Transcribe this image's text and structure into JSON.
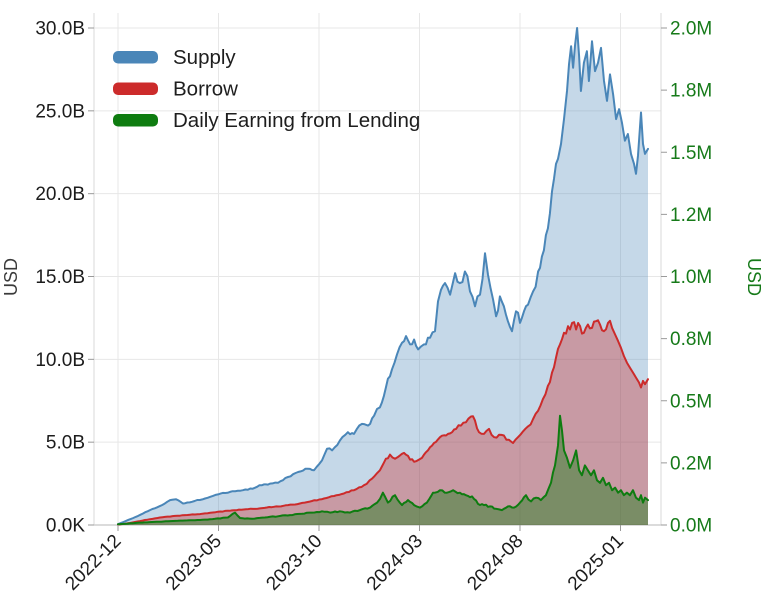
{
  "chart_data": {
    "type": "area",
    "title": "",
    "x_axis": {
      "tick_labels": [
        "2022-12",
        "2023-05",
        "2023-10",
        "2024-03",
        "2024-08",
        "2025-01"
      ],
      "ticks_t_months": [
        0,
        5,
        10,
        15,
        20,
        25
      ],
      "t_unit": "months since 2022-12"
    },
    "y_axis_left": {
      "title": "USD",
      "color": "#1c1c1c",
      "range_billions": [
        0,
        30
      ],
      "ticks": [
        {
          "label": "0.0K",
          "value": 0
        },
        {
          "label": "5.0B",
          "value": 5
        },
        {
          "label": "10.0B",
          "value": 10
        },
        {
          "label": "15.0B",
          "value": 15
        },
        {
          "label": "20.0B",
          "value": 20
        },
        {
          "label": "25.0B",
          "value": 25
        },
        {
          "label": "30.0B",
          "value": 30
        }
      ]
    },
    "y_axis_right": {
      "title": "USD",
      "color": "#167a19",
      "range_millions": [
        0,
        2
      ],
      "ticks": [
        {
          "label": "0.0M",
          "value": 0
        },
        {
          "label": "0.2M",
          "value": 0.25
        },
        {
          "label": "0.5M",
          "value": 0.5
        },
        {
          "label": "0.8M",
          "value": 0.75
        },
        {
          "label": "1.0M",
          "value": 1.0
        },
        {
          "label": "1.2M",
          "value": 1.25
        },
        {
          "label": "1.5M",
          "value": 1.5
        },
        {
          "label": "1.8M",
          "value": 1.75
        },
        {
          "label": "2.0M",
          "value": 2.0
        }
      ]
    },
    "legend": [
      {
        "label": "Supply",
        "color": "#4a86b8"
      },
      {
        "label": "Borrow",
        "color": "#cc2b2b"
      },
      {
        "label": "Daily Earning from Lending",
        "color": "#0e7c10"
      }
    ],
    "series": [
      {
        "name": "Supply",
        "axis": "left",
        "unit": "B USD",
        "color": "#4a86b8",
        "points": [
          [
            0,
            0.05
          ],
          [
            0.4,
            0.25
          ],
          [
            1.0,
            0.55
          ],
          [
            1.59,
            0.9
          ],
          [
            2.19,
            1.2
          ],
          [
            2.59,
            1.5
          ],
          [
            2.89,
            1.55
          ],
          [
            3.23,
            1.3
          ],
          [
            3.68,
            1.4
          ],
          [
            4.33,
            1.6
          ],
          [
            4.98,
            1.85
          ],
          [
            5.57,
            2.0
          ],
          [
            6.22,
            2.1
          ],
          [
            6.82,
            2.25
          ],
          [
            7.26,
            2.45
          ],
          [
            7.56,
            2.5
          ],
          [
            7.96,
            2.55
          ],
          [
            8.46,
            2.9
          ],
          [
            8.96,
            3.2
          ],
          [
            9.45,
            3.4
          ],
          [
            9.75,
            3.3
          ],
          [
            10.15,
            3.9
          ],
          [
            10.4,
            4.6
          ],
          [
            10.65,
            4.5
          ],
          [
            11.04,
            5.1
          ],
          [
            11.44,
            5.6
          ],
          [
            11.74,
            5.5
          ],
          [
            12.14,
            6.1
          ],
          [
            12.44,
            6.0
          ],
          [
            12.74,
            6.6
          ],
          [
            13.03,
            7.1
          ],
          [
            13.33,
            8.3
          ],
          [
            13.63,
            9.4
          ],
          [
            13.88,
            10.3
          ],
          [
            14.13,
            11.0
          ],
          [
            14.33,
            11.4
          ],
          [
            14.53,
            10.9
          ],
          [
            14.73,
            11.2
          ],
          [
            14.93,
            10.6
          ],
          [
            15.22,
            10.9
          ],
          [
            15.52,
            11.3
          ],
          [
            15.77,
            11.7
          ],
          [
            15.92,
            13.5
          ],
          [
            16.07,
            14.2
          ],
          [
            16.27,
            14.6
          ],
          [
            16.52,
            13.9
          ],
          [
            16.77,
            15.2
          ],
          [
            17.01,
            14.6
          ],
          [
            17.26,
            15.3
          ],
          [
            17.51,
            14.1
          ],
          [
            17.76,
            13.2
          ],
          [
            18.01,
            13.9
          ],
          [
            18.26,
            16.4
          ],
          [
            18.41,
            15.1
          ],
          [
            18.66,
            13.6
          ],
          [
            18.81,
            12.6
          ],
          [
            19.0,
            13.8
          ],
          [
            19.2,
            13.2
          ],
          [
            19.4,
            12.3
          ],
          [
            19.6,
            11.7
          ],
          [
            19.8,
            12.9
          ],
          [
            20.0,
            12.2
          ],
          [
            20.2,
            12.9
          ],
          [
            20.4,
            13.3
          ],
          [
            20.65,
            14.1
          ],
          [
            20.9,
            15.3
          ],
          [
            21.09,
            16.2
          ],
          [
            21.29,
            17.5
          ],
          [
            21.49,
            18.8
          ],
          [
            21.69,
            20.9
          ],
          [
            21.89,
            22.1
          ],
          [
            22.04,
            23.0
          ],
          [
            22.19,
            24.5
          ],
          [
            22.34,
            26.2
          ],
          [
            22.44,
            27.8
          ],
          [
            22.54,
            28.9
          ],
          [
            22.64,
            27.6
          ],
          [
            22.74,
            29.0
          ],
          [
            22.84,
            30.0
          ],
          [
            22.94,
            28.3
          ],
          [
            23.03,
            26.2
          ],
          [
            23.18,
            27.9
          ],
          [
            23.33,
            28.6
          ],
          [
            23.43,
            26.8
          ],
          [
            23.58,
            29.2
          ],
          [
            23.73,
            27.4
          ],
          [
            23.88,
            27.9
          ],
          [
            24.03,
            28.8
          ],
          [
            24.18,
            26.8
          ],
          [
            24.33,
            25.6
          ],
          [
            24.48,
            27.2
          ],
          [
            24.63,
            26.0
          ],
          [
            24.78,
            24.5
          ],
          [
            24.93,
            25.1
          ],
          [
            25.07,
            24.3
          ],
          [
            25.22,
            23.2
          ],
          [
            25.37,
            23.6
          ],
          [
            25.52,
            22.4
          ],
          [
            25.67,
            21.8
          ],
          [
            25.77,
            21.2
          ],
          [
            25.87,
            22.3
          ],
          [
            26.02,
            24.9
          ],
          [
            26.12,
            23.0
          ],
          [
            26.22,
            22.4
          ],
          [
            26.37,
            22.7
          ]
        ]
      },
      {
        "name": "Borrow",
        "axis": "left",
        "unit": "B USD",
        "color": "#cc2b2b",
        "points": [
          [
            0,
            0.02
          ],
          [
            0.6,
            0.12
          ],
          [
            1.34,
            0.3
          ],
          [
            2.09,
            0.45
          ],
          [
            2.84,
            0.55
          ],
          [
            3.58,
            0.62
          ],
          [
            4.33,
            0.7
          ],
          [
            4.98,
            0.8
          ],
          [
            5.67,
            0.88
          ],
          [
            6.37,
            0.95
          ],
          [
            7.06,
            1.0
          ],
          [
            7.76,
            1.1
          ],
          [
            8.46,
            1.2
          ],
          [
            9.05,
            1.3
          ],
          [
            9.65,
            1.45
          ],
          [
            10.25,
            1.6
          ],
          [
            10.75,
            1.75
          ],
          [
            11.24,
            1.9
          ],
          [
            11.74,
            2.1
          ],
          [
            12.24,
            2.4
          ],
          [
            12.64,
            2.8
          ],
          [
            13.03,
            3.3
          ],
          [
            13.33,
            4.0
          ],
          [
            13.53,
            4.25
          ],
          [
            13.78,
            4.0
          ],
          [
            14.03,
            4.2
          ],
          [
            14.23,
            4.35
          ],
          [
            14.53,
            3.95
          ],
          [
            14.83,
            3.85
          ],
          [
            15.12,
            4.05
          ],
          [
            15.42,
            4.5
          ],
          [
            15.72,
            4.95
          ],
          [
            16.02,
            5.3
          ],
          [
            16.32,
            5.4
          ],
          [
            16.62,
            5.6
          ],
          [
            16.82,
            5.8
          ],
          [
            17.06,
            6.0
          ],
          [
            17.31,
            6.2
          ],
          [
            17.56,
            6.55
          ],
          [
            17.76,
            6.3
          ],
          [
            17.96,
            5.6
          ],
          [
            18.21,
            5.5
          ],
          [
            18.46,
            5.8
          ],
          [
            18.71,
            5.3
          ],
          [
            18.96,
            5.45
          ],
          [
            19.2,
            5.4
          ],
          [
            19.45,
            5.15
          ],
          [
            19.65,
            4.95
          ],
          [
            19.9,
            5.3
          ],
          [
            20.15,
            5.65
          ],
          [
            20.4,
            5.95
          ],
          [
            20.65,
            6.4
          ],
          [
            20.9,
            6.9
          ],
          [
            21.14,
            7.6
          ],
          [
            21.39,
            8.4
          ],
          [
            21.59,
            9.2
          ],
          [
            21.79,
            10.1
          ],
          [
            21.99,
            10.9
          ],
          [
            22.19,
            11.6
          ],
          [
            22.39,
            12.0
          ],
          [
            22.59,
            12.2
          ],
          [
            22.79,
            11.8
          ],
          [
            22.99,
            12.0
          ],
          [
            23.18,
            11.6
          ],
          [
            23.38,
            12.1
          ],
          [
            23.58,
            11.9
          ],
          [
            23.78,
            12.3
          ],
          [
            23.98,
            12.1
          ],
          [
            24.18,
            11.7
          ],
          [
            24.38,
            12.2
          ],
          [
            24.58,
            11.9
          ],
          [
            24.73,
            11.5
          ],
          [
            24.88,
            11.1
          ],
          [
            25.02,
            10.7
          ],
          [
            25.17,
            10.2
          ],
          [
            25.32,
            9.8
          ],
          [
            25.47,
            9.5
          ],
          [
            25.62,
            9.2
          ],
          [
            25.77,
            8.9
          ],
          [
            25.92,
            8.6
          ],
          [
            26.02,
            8.3
          ],
          [
            26.12,
            8.7
          ],
          [
            26.22,
            8.5
          ],
          [
            26.37,
            8.8
          ]
        ]
      },
      {
        "name": "Daily Earning from Lending",
        "axis": "right",
        "unit": "M USD",
        "color": "#0e7c10",
        "points": [
          [
            0,
            0.003
          ],
          [
            0.85,
            0.008
          ],
          [
            1.69,
            0.012
          ],
          [
            2.49,
            0.015
          ],
          [
            3.33,
            0.018
          ],
          [
            4.08,
            0.02
          ],
          [
            4.83,
            0.025
          ],
          [
            5.47,
            0.03
          ],
          [
            5.82,
            0.05
          ],
          [
            6.07,
            0.028
          ],
          [
            6.67,
            0.025
          ],
          [
            7.31,
            0.03
          ],
          [
            7.96,
            0.035
          ],
          [
            8.56,
            0.04
          ],
          [
            9.15,
            0.045
          ],
          [
            9.65,
            0.05
          ],
          [
            10.15,
            0.055
          ],
          [
            10.55,
            0.05
          ],
          [
            11.04,
            0.055
          ],
          [
            11.54,
            0.05
          ],
          [
            12.04,
            0.06
          ],
          [
            12.54,
            0.07
          ],
          [
            12.89,
            0.09
          ],
          [
            13.18,
            0.13
          ],
          [
            13.43,
            0.09
          ],
          [
            13.78,
            0.12
          ],
          [
            14.13,
            0.08
          ],
          [
            14.43,
            0.1
          ],
          [
            14.73,
            0.08
          ],
          [
            15.02,
            0.07
          ],
          [
            15.37,
            0.09
          ],
          [
            15.67,
            0.13
          ],
          [
            16.02,
            0.14
          ],
          [
            16.37,
            0.13
          ],
          [
            16.67,
            0.14
          ],
          [
            17.01,
            0.13
          ],
          [
            17.31,
            0.12
          ],
          [
            17.61,
            0.115
          ],
          [
            17.91,
            0.085
          ],
          [
            18.21,
            0.08
          ],
          [
            18.51,
            0.075
          ],
          [
            18.81,
            0.065
          ],
          [
            19.1,
            0.06
          ],
          [
            19.4,
            0.075
          ],
          [
            19.7,
            0.07
          ],
          [
            20.0,
            0.09
          ],
          [
            20.3,
            0.12
          ],
          [
            20.55,
            0.095
          ],
          [
            20.8,
            0.11
          ],
          [
            21.04,
            0.1
          ],
          [
            21.29,
            0.12
          ],
          [
            21.54,
            0.17
          ],
          [
            21.74,
            0.24
          ],
          [
            21.89,
            0.32
          ],
          [
            21.99,
            0.44
          ],
          [
            22.09,
            0.38
          ],
          [
            22.19,
            0.3
          ],
          [
            22.34,
            0.27
          ],
          [
            22.49,
            0.23
          ],
          [
            22.64,
            0.26
          ],
          [
            22.79,
            0.3
          ],
          [
            22.94,
            0.22
          ],
          [
            23.08,
            0.2
          ],
          [
            23.23,
            0.24
          ],
          [
            23.38,
            0.22
          ],
          [
            23.53,
            0.2
          ],
          [
            23.68,
            0.22
          ],
          [
            23.83,
            0.18
          ],
          [
            23.98,
            0.17
          ],
          [
            24.13,
            0.19
          ],
          [
            24.28,
            0.16
          ],
          [
            24.43,
            0.17
          ],
          [
            24.58,
            0.14
          ],
          [
            24.73,
            0.15
          ],
          [
            24.88,
            0.13
          ],
          [
            25.02,
            0.14
          ],
          [
            25.17,
            0.12
          ],
          [
            25.32,
            0.13
          ],
          [
            25.47,
            0.12
          ],
          [
            25.62,
            0.14
          ],
          [
            25.77,
            0.11
          ],
          [
            25.92,
            0.1
          ],
          [
            26.02,
            0.12
          ],
          [
            26.12,
            0.09
          ],
          [
            26.22,
            0.11
          ],
          [
            26.37,
            0.1
          ]
        ]
      }
    ]
  }
}
